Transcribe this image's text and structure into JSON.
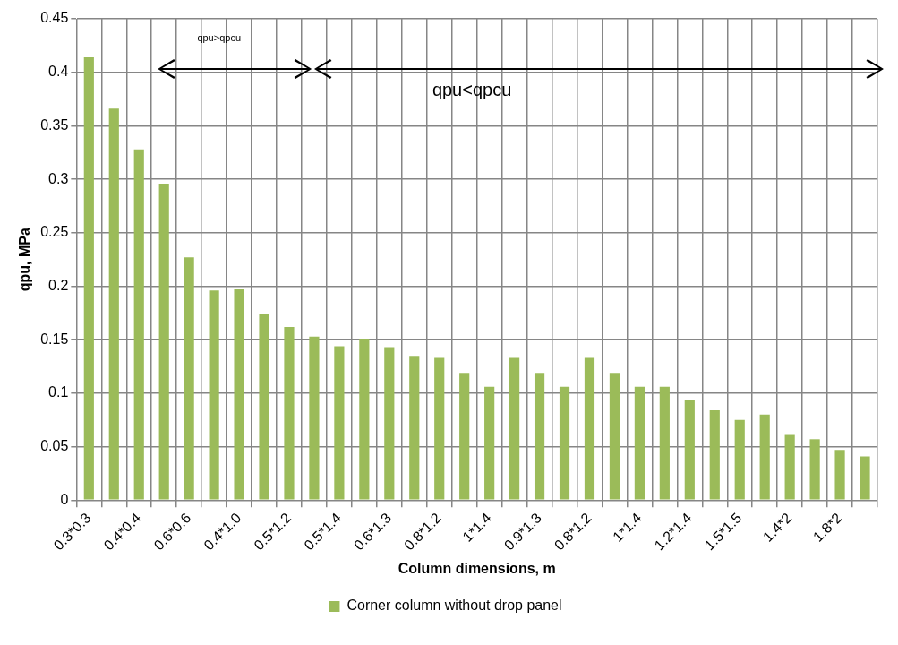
{
  "chart_data": {
    "type": "bar",
    "xlabel": "Column dimensions, m",
    "ylabel": "qpu, MPa",
    "categories": [
      "0.3*0.3",
      null,
      "0.4*0.4",
      null,
      "0.6*0.6",
      null,
      "0.4*1.0",
      null,
      "0.5*1.2",
      null,
      "0.5*1.4",
      null,
      "0.6*1.3",
      null,
      "0.8*1.2",
      null,
      "1*1.4",
      null,
      "0.9*1.3",
      null,
      "0.8*1.2",
      null,
      "1*1.4",
      null,
      "1.2*1.4",
      null,
      "1.5*1.5",
      null,
      "1.4*2",
      null,
      "1.8*2",
      null
    ],
    "series": [
      {
        "name": "Corner column without drop panel",
        "color": "#9bbb59",
        "values": [
          0.414,
          0.366,
          0.328,
          0.296,
          0.227,
          0.196,
          0.197,
          0.174,
          0.162,
          0.153,
          0.144,
          0.151,
          0.143,
          0.135,
          0.133,
          0.119,
          0.106,
          0.133,
          0.119,
          0.106,
          0.133,
          0.119,
          0.106,
          0.106,
          0.094,
          0.084,
          0.075,
          0.08,
          0.061,
          0.057,
          0.047,
          0.041
        ]
      }
    ],
    "ylim": [
      0,
      0.45
    ],
    "yticks": [
      0,
      0.05,
      0.1,
      0.15,
      0.2,
      0.25,
      0.3,
      0.35,
      0.4,
      0.45
    ],
    "grid": true,
    "legend": "bottom",
    "annotations": [
      "qpu>qpcu",
      "qpu<qpcu"
    ]
  }
}
